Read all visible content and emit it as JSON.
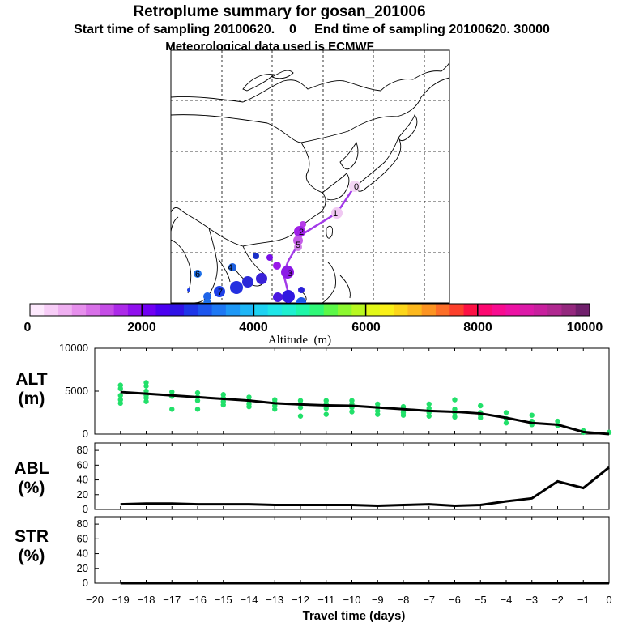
{
  "header": {
    "title": "Retroplume summary for gosan_201006",
    "subtitle": "Start time of sampling 20100620.    0     End time of sampling 20100620. 30000",
    "met": "Meteorological data used is ECMWF"
  },
  "map": {
    "labels": [
      "0",
      "1",
      "2",
      "3",
      "4",
      "5",
      "6",
      "7"
    ]
  },
  "colorbar": {
    "tick_labels": [
      "0",
      "2000",
      "4000",
      "6000",
      "8000",
      "10000"
    ],
    "title": "Altitude  (m)",
    "colors": [
      "#fde9fd",
      "#f7cdf7",
      "#efb0f1",
      "#e68fec",
      "#d870e8",
      "#c54de6",
      "#ac2ae8",
      "#9010ee",
      "#7000f2",
      "#4c00f0",
      "#3012e6",
      "#1e36e8",
      "#1c56ee",
      "#1e78f4",
      "#1e98f6",
      "#1eb6f6",
      "#1ed2f2",
      "#1ee6e8",
      "#1ef0d0",
      "#1ef6a8",
      "#30f878",
      "#5cf848",
      "#8cf830",
      "#b8f820",
      "#e2f818",
      "#faf018",
      "#fcd61a",
      "#fcb81e",
      "#fc9422",
      "#fc6e28",
      "#fc402c",
      "#fc1044",
      "#fc0870",
      "#f80c90",
      "#ec12a4",
      "#dc1aa8",
      "#c8209e",
      "#b02890",
      "#94287e",
      "#70206c"
    ]
  },
  "chart_data": [
    {
      "type": "scatter+line",
      "name": "ALT",
      "ylabel": "ALT\n(m)",
      "ylabel_lines": [
        "ALT",
        "(m)"
      ],
      "xlim": [
        -20,
        0
      ],
      "ylim": [
        0,
        10000
      ],
      "yticks": [
        "10000",
        "5000",
        "0"
      ],
      "ytick_values": [
        10000,
        5000,
        0
      ],
      "line": {
        "x": [
          -19,
          -18,
          -17,
          -16,
          -15,
          -14,
          -13,
          -12,
          -11,
          -10,
          -9,
          -8,
          -7,
          -6,
          -5,
          -4,
          -3,
          -2,
          -1,
          0
        ],
        "y": [
          4900,
          4700,
          4500,
          4300,
          4100,
          3900,
          3600,
          3450,
          3350,
          3300,
          3100,
          2900,
          2700,
          2600,
          2400,
          1900,
          1300,
          1100,
          250,
          0
        ]
      },
      "points": {
        "x": [
          -19,
          -19,
          -19,
          -19,
          -19,
          -18,
          -18,
          -18,
          -18,
          -18,
          -18,
          -17,
          -17,
          -17,
          -16,
          -16,
          -16,
          -16,
          -15,
          -15,
          -15,
          -15,
          -14,
          -14,
          -14,
          -14,
          -13,
          -13,
          -13,
          -13,
          -12,
          -12,
          -12,
          -12,
          -11,
          -11,
          -11,
          -11,
          -10,
          -10,
          -10,
          -10,
          -9,
          -9,
          -9,
          -9,
          -8,
          -8,
          -8,
          -8,
          -7,
          -7,
          -7,
          -7,
          -6,
          -6,
          -6,
          -6,
          -5,
          -5,
          -5,
          -5,
          -4,
          -4,
          -4,
          -3,
          -3,
          -3,
          -2,
          -2,
          -1,
          -1,
          0
        ],
        "y": [
          5700,
          5300,
          4500,
          4000,
          3600,
          6000,
          5600,
          5000,
          4500,
          4200,
          3800,
          4900,
          4400,
          2900,
          4800,
          4300,
          3900,
          2900,
          4600,
          4200,
          3800,
          3400,
          4300,
          3900,
          3500,
          3200,
          4000,
          3700,
          3300,
          2900,
          3900,
          3500,
          3100,
          2100,
          3900,
          3500,
          3000,
          2300,
          3900,
          3500,
          3100,
          2600,
          3500,
          3100,
          2700,
          2300,
          3200,
          2900,
          2500,
          2200,
          3500,
          3000,
          2500,
          2100,
          4000,
          2900,
          2500,
          2000,
          3300,
          2500,
          2200,
          1900,
          2500,
          1800,
          1300,
          2200,
          1500,
          1100,
          1500,
          1000,
          400,
          200,
          200
        ]
      }
    },
    {
      "type": "line",
      "name": "ABL",
      "ylabel_lines": [
        "ABL",
        "(%)"
      ],
      "xlim": [
        -20,
        0
      ],
      "ylim": [
        0,
        90
      ],
      "yticks": [
        "80",
        "60",
        "40",
        "20",
        "0"
      ],
      "ytick_values": [
        80,
        60,
        40,
        20,
        0
      ],
      "line": {
        "x": [
          -19,
          -18,
          -17,
          -16,
          -15,
          -14,
          -13,
          -12,
          -11,
          -10,
          -9,
          -8,
          -7,
          -6,
          -5,
          -4,
          -3,
          -2,
          -1,
          0
        ],
        "y": [
          7,
          8,
          8,
          7,
          7,
          7,
          6,
          6,
          6,
          6,
          5,
          6,
          7,
          5,
          6,
          11,
          15,
          38,
          29,
          57
        ]
      }
    },
    {
      "type": "line",
      "name": "STR",
      "ylabel_lines": [
        "STR",
        "(%)"
      ],
      "xlim": [
        -20,
        0
      ],
      "ylim": [
        0,
        90
      ],
      "yticks": [
        "80",
        "60",
        "40",
        "20",
        "0"
      ],
      "ytick_values": [
        80,
        60,
        40,
        20,
        0
      ],
      "xticks": [
        "−20",
        "−19",
        "−18",
        "−17",
        "−16",
        "−15",
        "−14",
        "−13",
        "−12",
        "−11",
        "−10",
        "−9",
        "−8",
        "−7",
        "−6",
        "−5",
        "−4",
        "−3",
        "−2",
        "−1",
        "0"
      ],
      "xtick_values": [
        -20,
        -19,
        -18,
        -17,
        -16,
        -15,
        -14,
        -13,
        -12,
        -11,
        -10,
        -9,
        -8,
        -7,
        -6,
        -5,
        -4,
        -3,
        -2,
        -1,
        0
      ],
      "xlabel": "Travel time (days)",
      "line": {
        "x": [
          -19,
          -18,
          -17,
          -16,
          -15,
          -14,
          -13,
          -12,
          -11,
          -10,
          -9,
          -8,
          -7,
          -6,
          -5,
          -4,
          -3,
          -2,
          -1,
          0
        ],
        "y": [
          0,
          0,
          0,
          0,
          0,
          0,
          0,
          0,
          0,
          0,
          0,
          0,
          0,
          0,
          0,
          0,
          0,
          0,
          0,
          0
        ]
      }
    }
  ]
}
